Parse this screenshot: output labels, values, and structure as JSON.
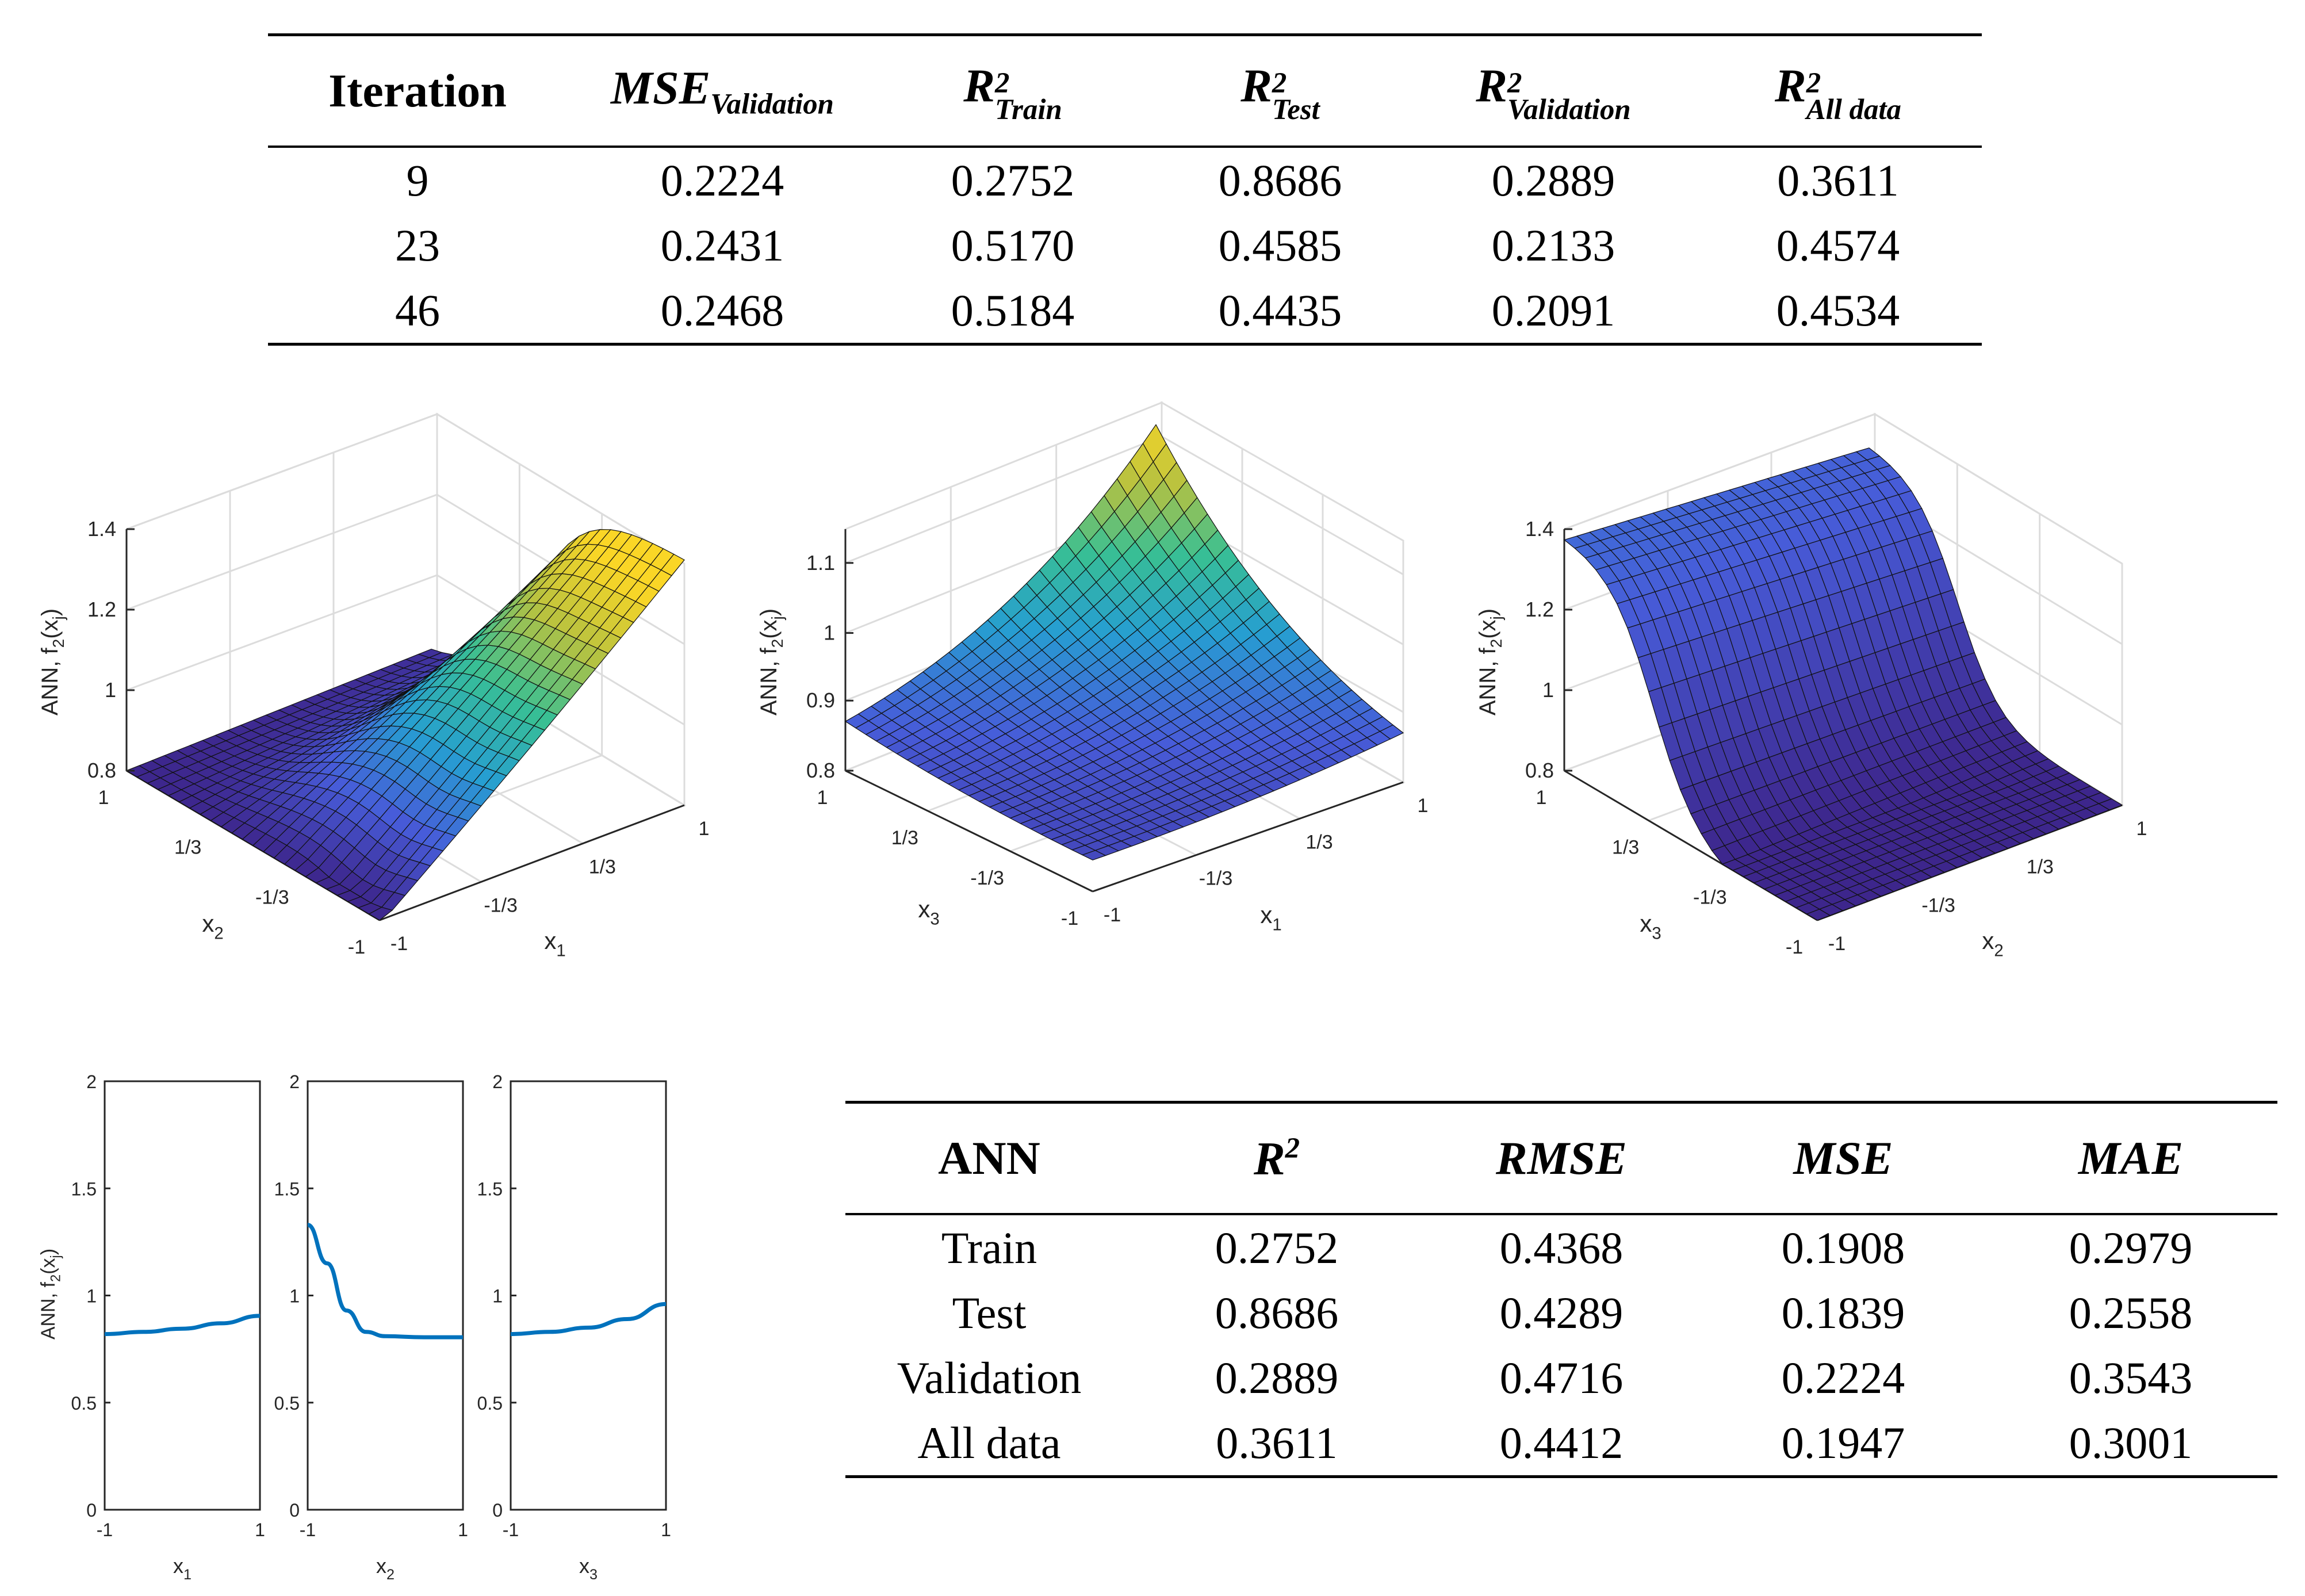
{
  "top_table": {
    "headers": {
      "iteration": "Iteration",
      "mse_base": "MSE",
      "mse_sub": "Validation",
      "r2_base": "R",
      "r2_sup": "2",
      "train_sub": "Train",
      "test_sub": "Test",
      "val_sub": "Validation",
      "all_sub": "All data"
    },
    "rows": [
      [
        "9",
        "0.2224",
        "0.2752",
        "0.8686",
        "0.2889",
        "0.3611"
      ],
      [
        "23",
        "0.2431",
        "0.5170",
        "0.4585",
        "0.2133",
        "0.4574"
      ],
      [
        "46",
        "0.2468",
        "0.5184",
        "0.4435",
        "0.2091",
        "0.4534"
      ]
    ]
  },
  "bottom_table": {
    "headers": {
      "ann": "ANN",
      "r2_base": "R",
      "r2_sup": "2",
      "rmse": "RMSE",
      "mse": "MSE",
      "mae": "MAE"
    },
    "rows": [
      [
        "Train",
        "0.2752",
        "0.4368",
        "0.1908",
        "0.2979"
      ],
      [
        "Test",
        "0.8686",
        "0.4289",
        "0.1839",
        "0.2558"
      ],
      [
        "Validation",
        "0.2889",
        "0.4716",
        "0.2224",
        "0.3543"
      ],
      [
        "All data",
        "0.3611",
        "0.4412",
        "0.1947",
        "0.3001"
      ]
    ]
  },
  "chart_data": [
    {
      "type": "surface",
      "title": "",
      "zlabel": "ANN, f2(xj)",
      "zticks": [
        "0.8",
        "1",
        "1.2",
        "1.4"
      ],
      "xlabel": "x1",
      "ylabel": "x2",
      "xticks": [
        "-1",
        "-1/3",
        "1/3",
        "1"
      ],
      "yticks": [
        "-1",
        "-1/3",
        "1/3",
        "1"
      ],
      "zlim": [
        0.8,
        1.4
      ]
    },
    {
      "type": "surface",
      "title": "",
      "zlabel": "ANN, f2(xj)",
      "zticks": [
        "0.8",
        "0.9",
        "1",
        "1.1"
      ],
      "xlabel": "x1",
      "ylabel": "x3",
      "xticks": [
        "-1",
        "-1/3",
        "1/3",
        "1"
      ],
      "yticks": [
        "-1",
        "-1/3",
        "1/3",
        "1"
      ],
      "zlim": [
        0.8,
        1.15
      ]
    },
    {
      "type": "surface",
      "title": "",
      "zlabel": "ANN, f2(xj)",
      "zticks": [
        "0.8",
        "1",
        "1.2",
        "1.4"
      ],
      "xlabel": "x2",
      "ylabel": "x3",
      "xticks": [
        "-1",
        "-1/3",
        "1/3",
        "1"
      ],
      "yticks": [
        "-1",
        "-1/3",
        "1/3",
        "1"
      ],
      "zlim": [
        0.8,
        1.4
      ]
    },
    {
      "type": "line",
      "ylabel": "ANN, f2(xj)",
      "ylim": [
        0,
        2
      ],
      "yticks": [
        "0",
        "0.5",
        "1",
        "1.5",
        "2"
      ],
      "xticks": [
        "-1",
        "1"
      ],
      "panels": [
        {
          "xlabel": "x1",
          "x": [
            -1,
            -0.5,
            0,
            0.5,
            1
          ],
          "y": [
            0.82,
            0.83,
            0.845,
            0.87,
            0.905
          ]
        },
        {
          "xlabel": "x2",
          "x": [
            -1,
            -0.75,
            -0.5,
            -0.25,
            0,
            0.5,
            1
          ],
          "y": [
            1.33,
            1.15,
            0.93,
            0.83,
            0.81,
            0.805,
            0.805
          ]
        },
        {
          "xlabel": "x3",
          "x": [
            -1,
            -0.5,
            0,
            0.5,
            1
          ],
          "y": [
            0.82,
            0.83,
            0.85,
            0.89,
            0.96
          ]
        }
      ]
    }
  ]
}
